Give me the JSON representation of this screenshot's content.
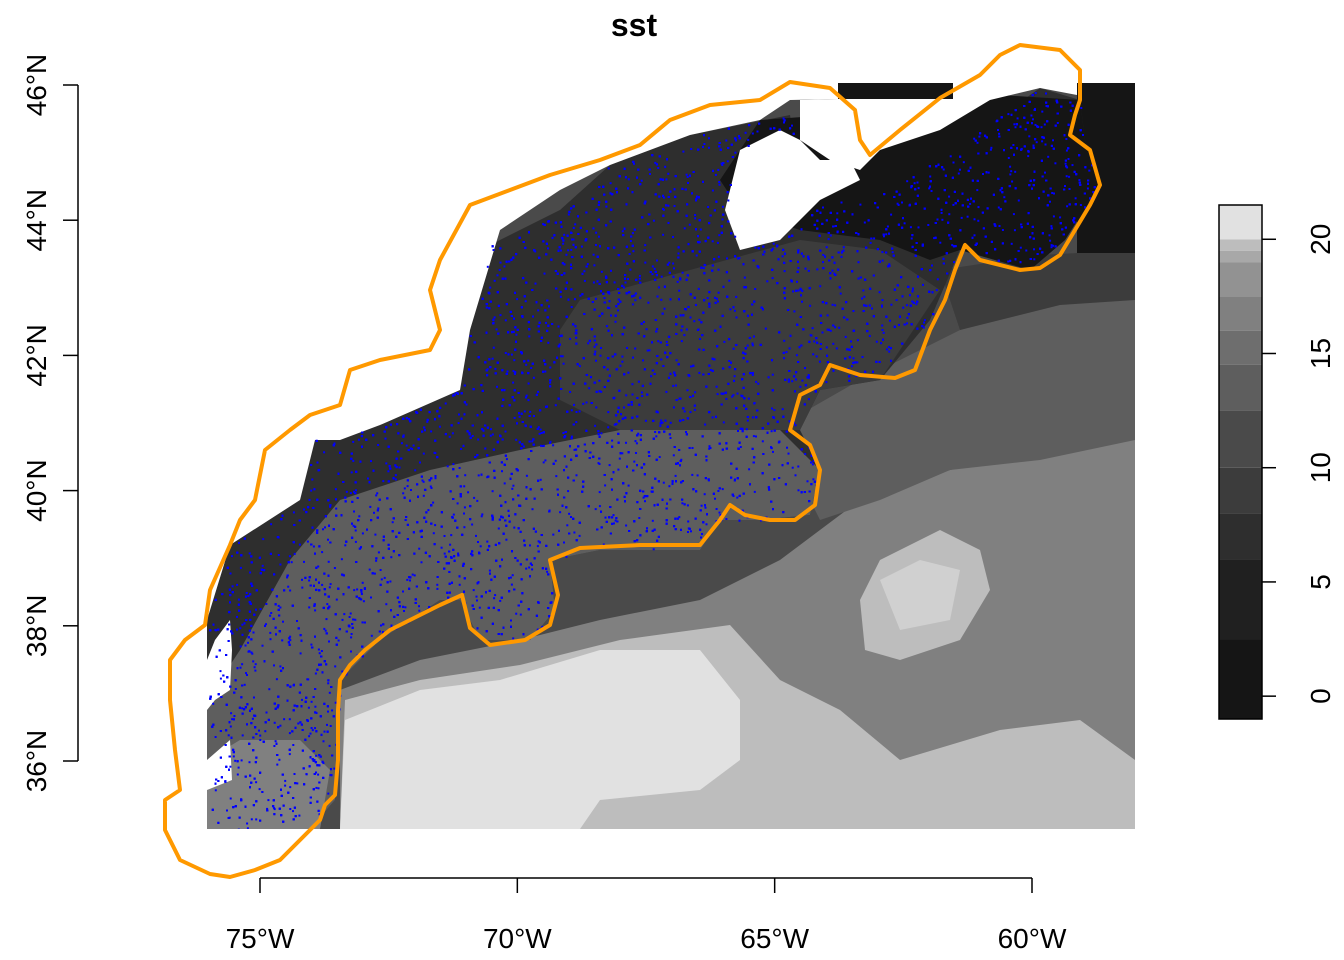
{
  "title": "sst",
  "map": {
    "x_ticks": [
      {
        "value": -75,
        "label": "75°W"
      },
      {
        "value": -70,
        "label": "70°W"
      },
      {
        "value": -65,
        "label": "65°W"
      },
      {
        "value": -60,
        "label": "60°W"
      }
    ],
    "y_ticks": [
      {
        "value": 36,
        "label": "36°N"
      },
      {
        "value": 38,
        "label": "38°N"
      },
      {
        "value": 40,
        "label": "40°N"
      },
      {
        "value": 42,
        "label": "42°N"
      },
      {
        "value": 44,
        "label": "44°N"
      },
      {
        "value": 46,
        "label": "46°N"
      }
    ],
    "extent": {
      "lon": [
        -76,
        -58
      ],
      "lat": [
        35,
        46
      ]
    },
    "boundary_color": "#FF9900",
    "points_color": "#0000FF"
  },
  "legend": {
    "ticks": [
      {
        "value": 0,
        "label": "0"
      },
      {
        "value": 5,
        "label": "5"
      },
      {
        "value": 10,
        "label": "10"
      },
      {
        "value": 15,
        "label": "15"
      },
      {
        "value": 20,
        "label": "20"
      }
    ],
    "breaks": [
      -1,
      2.5,
      6,
      8,
      10,
      12.5,
      14.5,
      16,
      17.5,
      19,
      19.5,
      20,
      21.5
    ],
    "colors": [
      "#151515",
      "#202020",
      "#2e2e2e",
      "#3c3c3c",
      "#4a4a4a",
      "#5e5e5e",
      "#6e6e6e",
      "#808080",
      "#929292",
      "#a8a8a8",
      "#bdbdbd",
      "#e1e1e1"
    ]
  }
}
